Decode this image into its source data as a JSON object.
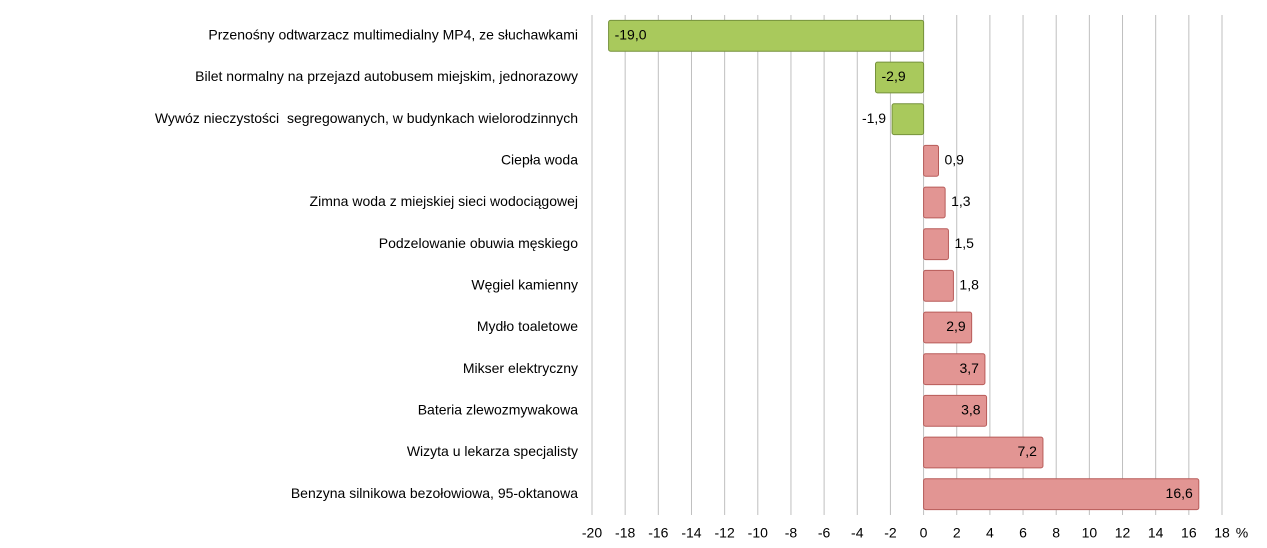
{
  "chart_data": {
    "type": "bar",
    "orientation": "horizontal",
    "categories": [
      "Przenośny odtwarzacz multimedialny MP4, ze słuchawkami",
      "Bilet normalny na przejazd autobusem miejskim, jednorazowy",
      "Wywóz nieczystości  segregowanych, w budynkach wielorodzinnych",
      "Ciepła woda",
      "Zimna woda z miejskiej sieci wodociągowej",
      "Podzelowanie obuwia męskiego",
      "Węgiel kamienny",
      "Mydło toaletowe",
      "Mikser elektryczny",
      "Bateria zlewozmywakowa",
      "Wizyta u lekarza specjalisty",
      "Benzyna silnikowa bezołowiowa, 95-oktanowa"
    ],
    "values": [
      -19.0,
      -2.9,
      -1.9,
      0.9,
      1.3,
      1.5,
      1.8,
      2.9,
      3.7,
      3.8,
      7.2,
      16.6
    ],
    "value_labels": [
      "-19,0",
      "-2,9",
      "-1,9",
      "0,9",
      "1,3",
      "1,5",
      "1,8",
      "2,9",
      "3,7",
      "3,8",
      "7,2",
      "16,6"
    ],
    "color_negative": "#a9c95c",
    "color_positive": "#e29593",
    "xlabel": "%",
    "xlim": [
      -20,
      18
    ],
    "xticks": [
      -20,
      -18,
      -16,
      -14,
      -12,
      -10,
      -8,
      -6,
      -4,
      -2,
      0,
      2,
      4,
      6,
      8,
      10,
      12,
      14,
      16,
      18
    ],
    "grid": true
  }
}
